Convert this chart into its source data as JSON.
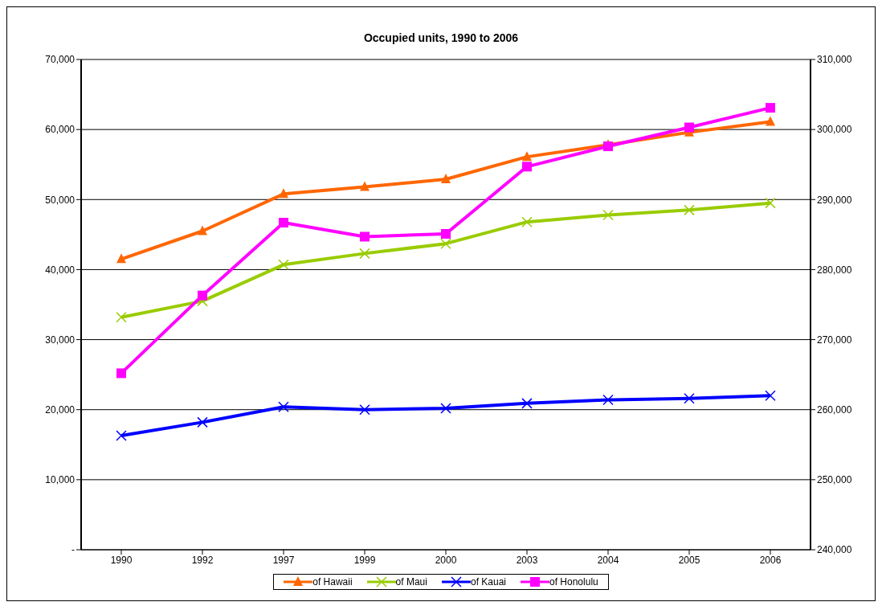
{
  "chart_data": {
    "type": "line",
    "title": "Occupied units, 1990 to 2006",
    "categories": [
      "1990",
      "1992",
      "1997",
      "1999",
      "2000",
      "2003",
      "2004",
      "2005",
      "2006"
    ],
    "series": [
      {
        "name": "of Hawaii",
        "color": "#ff6600",
        "marker": "triangle",
        "values": [
          41500,
          45500,
          50800,
          51800,
          52900,
          56100,
          57800,
          59600,
          61100
        ]
      },
      {
        "name": "of Maui",
        "color": "#99cc00",
        "marker": "cross",
        "values": [
          33200,
          35500,
          40700,
          42300,
          43700,
          46800,
          47800,
          48500,
          49500
        ]
      },
      {
        "name": "of Kauai",
        "color": "#0000ff",
        "marker": "cross",
        "values": [
          16300,
          18200,
          20400,
          20000,
          20200,
          20900,
          21400,
          21600,
          22000
        ]
      },
      {
        "name": "of Honolulu",
        "color": "#ff00ff",
        "marker": "square",
        "axis": "y2",
        "values": [
          265200,
          276300,
          286700,
          284700,
          285100,
          294700,
          297600,
          300300,
          303100
        ]
      }
    ],
    "ylim": [
      0,
      70000
    ],
    "yticks": [
      {
        "value": 0,
        "label": "-"
      },
      {
        "value": 10000,
        "label": "10,000"
      },
      {
        "value": 20000,
        "label": "20,000"
      },
      {
        "value": 30000,
        "label": "30,000"
      },
      {
        "value": 40000,
        "label": "40,000"
      },
      {
        "value": 50000,
        "label": "50,000"
      },
      {
        "value": 60000,
        "label": "60,000"
      },
      {
        "value": 70000,
        "label": "70,000"
      }
    ],
    "y2lim": [
      240000,
      310000
    ],
    "y2ticks": [
      {
        "value": 240000,
        "label": "240,000"
      },
      {
        "value": 250000,
        "label": "250,000"
      },
      {
        "value": 260000,
        "label": "260,000"
      },
      {
        "value": 270000,
        "label": "270,000"
      },
      {
        "value": 280000,
        "label": "280,000"
      },
      {
        "value": 290000,
        "label": "290,000"
      },
      {
        "value": 300000,
        "label": "300,000"
      },
      {
        "value": 310000,
        "label": "310,000"
      }
    ],
    "grid": "y",
    "legend": "bottom",
    "line_style": "solid"
  }
}
